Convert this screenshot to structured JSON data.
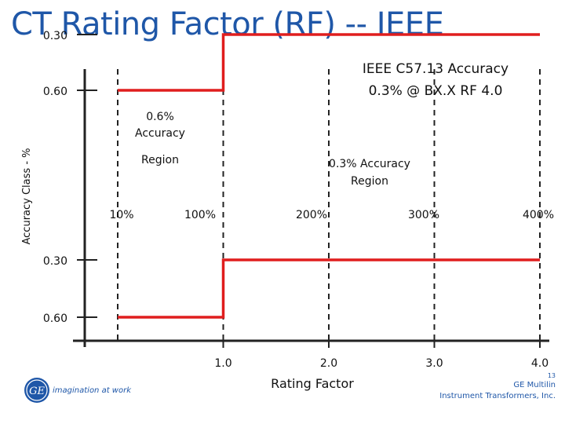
{
  "title": "CT Rating Factor (RF) -- IEEE",
  "colors": {
    "title": "#1f57a8",
    "series": "#e01e1e",
    "axis": "#222222",
    "text": "#111111",
    "dashed": "#222222"
  },
  "chart_data": {
    "type": "line",
    "xlabel": "Rating Factor",
    "ylabel": "Accuracy Class - %",
    "x_ticks": [
      "1.0",
      "2.0",
      "3.0",
      "4.0"
    ],
    "x_range": [
      0.0,
      4.0
    ],
    "current_labels": [
      "10%",
      "100%",
      "200%",
      "300%",
      "400%"
    ],
    "upper_y_ticks": [
      "0.60",
      "0.30"
    ],
    "lower_y_ticks": [
      "0.30",
      "0.60"
    ],
    "y_range": [
      -0.6,
      0.6
    ],
    "dashed_x": [
      0.0,
      1.0,
      2.0,
      3.0,
      4.0
    ],
    "series": [
      {
        "values_x": [
          0.0,
          1.0,
          1.0,
          4.0
        ],
        "values_y": [
          0.6,
          0.6,
          0.3,
          0.3
        ]
      },
      {
        "values_x": [
          0.0,
          1.0,
          1.0,
          4.0
        ],
        "values_y": [
          -0.6,
          -0.6,
          -0.3,
          -0.3
        ]
      }
    ],
    "annotations": {
      "standard_line1": "IEEE C57.13 Accuracy",
      "standard_line2": "0.3% @ BX.X   RF 4.0",
      "region_06_line1": "0.6%",
      "region_06_line2": "Accuracy",
      "region_06_line3": "Region",
      "region_03_line1": "0.3% Accuracy",
      "region_03_line2": "Region"
    }
  },
  "logo": {
    "tagline": "imagination at work"
  },
  "footer": {
    "page": "13",
    "line1": "GE Multilin",
    "line2": "Instrument Transformers, Inc."
  }
}
